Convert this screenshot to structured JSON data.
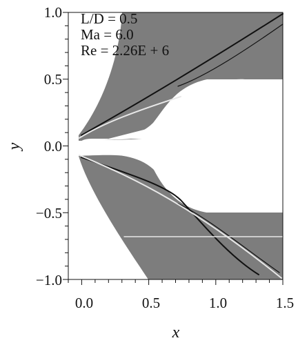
{
  "figure": {
    "annotation": {
      "line1": "L/D = 0.5",
      "line2": "Ma = 6.0",
      "line3": "Re = 2.26E + 6"
    },
    "xlabel": "x",
    "ylabel": "y",
    "xticks": [
      "0.0",
      "0.5",
      "1.0",
      "1.5"
    ],
    "yticks": [
      "1.0",
      "0.5",
      "0.0",
      "−0.5",
      "−1.0"
    ]
  },
  "chart_data": {
    "type": "contour-field",
    "xlabel": "x",
    "ylabel": "y",
    "xlim": [
      -0.1,
      1.5
    ],
    "ylim": [
      -1.0,
      1.0
    ],
    "xticks": [
      0.0,
      0.5,
      1.0,
      1.5
    ],
    "yticks": [
      1.0,
      0.5,
      0.0,
      -0.5,
      -1.0
    ],
    "parameters": {
      "L/D": 0.5,
      "Ma": 6.0,
      "Re": "2.26E+6"
    },
    "colors": {
      "field": "#7d7d7d",
      "shock": "#111111",
      "expansion": "#e8e8e8"
    }
  }
}
